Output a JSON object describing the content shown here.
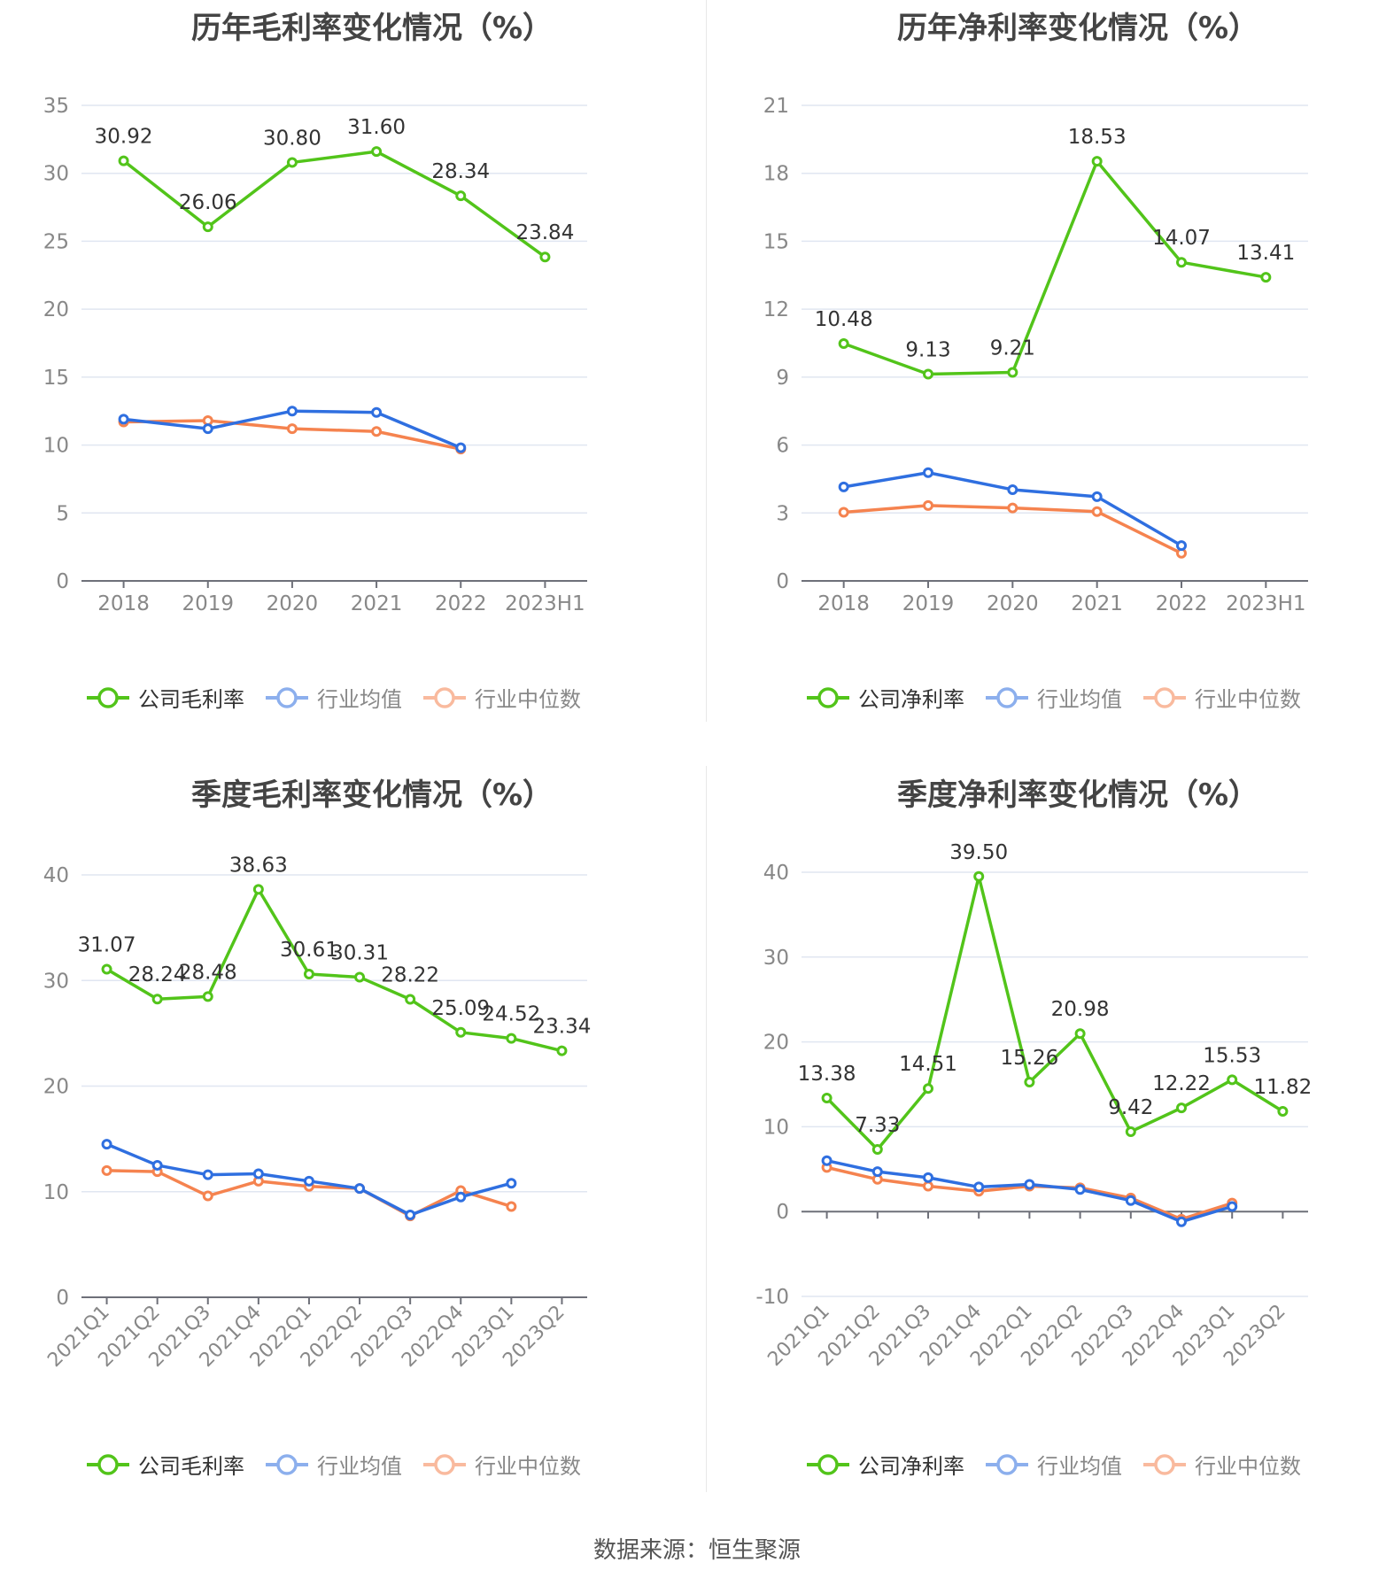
{
  "footer": "数据来源：恒生聚源",
  "colors": {
    "company": "#52c41a",
    "avg": "#2f6fe0",
    "median": "#f5834f",
    "grid": "#e0e6f1",
    "axis": "#6e7079",
    "tick_text": "#888888",
    "label_text": "#333333"
  },
  "chart_data": [
    {
      "type": "line",
      "title": "历年毛利率变化情况（%）",
      "categories": [
        "2018",
        "2019",
        "2020",
        "2021",
        "2022",
        "2023H1"
      ],
      "yticks": [
        "0",
        "5",
        "10",
        "15",
        "20",
        "25",
        "30",
        "35"
      ],
      "ylim": [
        0,
        35
      ],
      "rotate_x": false,
      "series": [
        {
          "name": "公司毛利率",
          "key": "company",
          "labels": [
            "30.92",
            "26.06",
            "30.80",
            "31.60",
            "28.34",
            "23.84"
          ],
          "values": [
            30.92,
            26.06,
            30.8,
            31.6,
            28.34,
            23.84
          ]
        },
        {
          "name": "行业均值",
          "key": "avg",
          "values": [
            11.9,
            11.2,
            12.5,
            12.4,
            9.8,
            null
          ]
        },
        {
          "name": "行业中位数",
          "key": "median",
          "values": [
            11.7,
            11.8,
            11.2,
            11.0,
            9.7,
            null
          ]
        }
      ]
    },
    {
      "type": "line",
      "title": "历年净利率变化情况（%）",
      "categories": [
        "2018",
        "2019",
        "2020",
        "2021",
        "2022",
        "2023H1"
      ],
      "yticks": [
        "0",
        "3",
        "6",
        "9",
        "12",
        "15",
        "18",
        "21"
      ],
      "ylim": [
        0,
        21
      ],
      "rotate_x": false,
      "series": [
        {
          "name": "公司净利率",
          "key": "company",
          "labels": [
            "10.48",
            "9.13",
            "9.21",
            "18.53",
            "14.07",
            "13.41"
          ],
          "values": [
            10.48,
            9.13,
            9.21,
            18.53,
            14.07,
            13.41
          ]
        },
        {
          "name": "行业均值",
          "key": "avg",
          "values": [
            4.15,
            4.78,
            4.03,
            3.72,
            1.56,
            null
          ]
        },
        {
          "name": "行业中位数",
          "key": "median",
          "values": [
            3.03,
            3.33,
            3.22,
            3.06,
            1.22,
            null
          ]
        }
      ]
    },
    {
      "type": "line",
      "title": "季度毛利率变化情况（%）",
      "categories": [
        "2021Q1",
        "2021Q2",
        "2021Q3",
        "2021Q4",
        "2022Q1",
        "2022Q2",
        "2022Q3",
        "2022Q4",
        "2023Q1",
        "2023Q2"
      ],
      "yticks": [
        "0",
        "10",
        "20",
        "30",
        "40"
      ],
      "ylim": [
        0,
        40
      ],
      "rotate_x": true,
      "series": [
        {
          "name": "公司毛利率",
          "key": "company",
          "labels": [
            "31.07",
            "28.24",
            "28.48",
            "38.63",
            "30.61",
            "30.31",
            "28.22",
            "25.09",
            "24.52",
            "23.34"
          ],
          "values": [
            31.07,
            28.24,
            28.48,
            38.63,
            30.61,
            30.31,
            28.22,
            25.09,
            24.52,
            23.34
          ]
        },
        {
          "name": "行业均值",
          "key": "avg",
          "values": [
            14.5,
            12.5,
            11.6,
            11.7,
            11.0,
            10.3,
            7.8,
            9.5,
            10.8,
            null
          ]
        },
        {
          "name": "行业中位数",
          "key": "median",
          "values": [
            12.0,
            11.9,
            9.6,
            11.0,
            10.5,
            10.3,
            7.7,
            10.1,
            8.6,
            null
          ]
        }
      ]
    },
    {
      "type": "line",
      "title": "季度净利率变化情况（%）",
      "categories": [
        "2021Q1",
        "2021Q2",
        "2021Q3",
        "2021Q4",
        "2022Q1",
        "2022Q2",
        "2022Q3",
        "2022Q4",
        "2023Q1",
        "2023Q2"
      ],
      "yticks": [
        "-10",
        "0",
        "10",
        "20",
        "30",
        "40"
      ],
      "ylim": [
        -10,
        40
      ],
      "rotate_x": true,
      "series": [
        {
          "name": "公司净利率",
          "key": "company",
          "labels": [
            "13.38",
            "7.33",
            "14.51",
            "39.50",
            "15.26",
            "20.98",
            "9.42",
            "12.22",
            "15.53",
            "11.82"
          ],
          "values": [
            13.38,
            7.33,
            14.51,
            39.5,
            15.26,
            20.98,
            9.42,
            12.22,
            15.53,
            11.82
          ]
        },
        {
          "name": "行业均值",
          "key": "avg",
          "values": [
            6.0,
            4.7,
            4.0,
            2.9,
            3.2,
            2.6,
            1.3,
            -1.2,
            0.6,
            null
          ]
        },
        {
          "name": "行业中位数",
          "key": "median",
          "values": [
            5.2,
            3.8,
            3.0,
            2.4,
            3.0,
            2.8,
            1.6,
            -0.9,
            1.0,
            null
          ]
        }
      ]
    }
  ]
}
